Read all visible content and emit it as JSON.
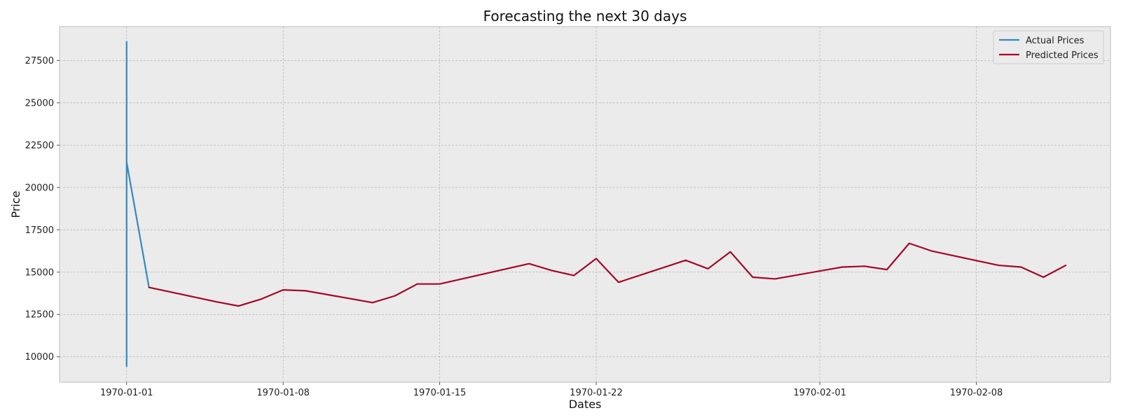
{
  "chart_data": {
    "type": "line",
    "title": "Forecasting the next 30 days",
    "xlabel": "Dates",
    "ylabel": "Price",
    "x_axis_type": "date",
    "xlim": [
      "1969-12-29",
      "1970-02-14"
    ],
    "ylim": [
      8500,
      29500
    ],
    "x_ticks": [
      "1970-01-01",
      "1970-01-08",
      "1970-01-15",
      "1970-01-22",
      "1970-02-01",
      "1970-02-08"
    ],
    "y_ticks": [
      10000,
      12500,
      15000,
      17500,
      20000,
      22500,
      25000,
      27500
    ],
    "grid": true,
    "legend_position": "top-right",
    "series": [
      {
        "name": "Actual Prices",
        "color": "#348abd",
        "points": [
          [
            "1970-01-01",
            28600
          ],
          [
            "1970-01-01",
            27400
          ],
          [
            "1970-01-01",
            9450
          ],
          [
            "1970-01-01",
            13300
          ],
          [
            "1970-01-01",
            10200
          ],
          [
            "1970-01-01",
            24800
          ],
          [
            "1970-01-01",
            21500
          ],
          [
            "1970-01-02",
            14100
          ]
        ]
      },
      {
        "name": "Predicted Prices",
        "color": "#a60628",
        "points": [
          [
            "1970-01-02",
            14100
          ],
          [
            "1970-01-05",
            13250
          ],
          [
            "1970-01-06",
            13000
          ],
          [
            "1970-01-07",
            13400
          ],
          [
            "1970-01-08",
            13950
          ],
          [
            "1970-01-09",
            13900
          ],
          [
            "1970-01-12",
            13200
          ],
          [
            "1970-01-13",
            13600
          ],
          [
            "1970-01-14",
            14300
          ],
          [
            "1970-01-15",
            14300
          ],
          [
            "1970-01-19",
            15500
          ],
          [
            "1970-01-20",
            15100
          ],
          [
            "1970-01-21",
            14800
          ],
          [
            "1970-01-22",
            15800
          ],
          [
            "1970-01-23",
            14400
          ],
          [
            "1970-01-26",
            15700
          ],
          [
            "1970-01-27",
            15200
          ],
          [
            "1970-01-28",
            16200
          ],
          [
            "1970-01-29",
            14700
          ],
          [
            "1970-01-30",
            14600
          ],
          [
            "1970-02-02",
            15300
          ],
          [
            "1970-02-03",
            15350
          ],
          [
            "1970-02-04",
            15150
          ],
          [
            "1970-02-05",
            16700
          ],
          [
            "1970-02-06",
            16250
          ],
          [
            "1970-02-09",
            15400
          ],
          [
            "1970-02-10",
            15300
          ],
          [
            "1970-02-11",
            14700
          ],
          [
            "1970-02-12",
            15400
          ]
        ]
      }
    ]
  }
}
